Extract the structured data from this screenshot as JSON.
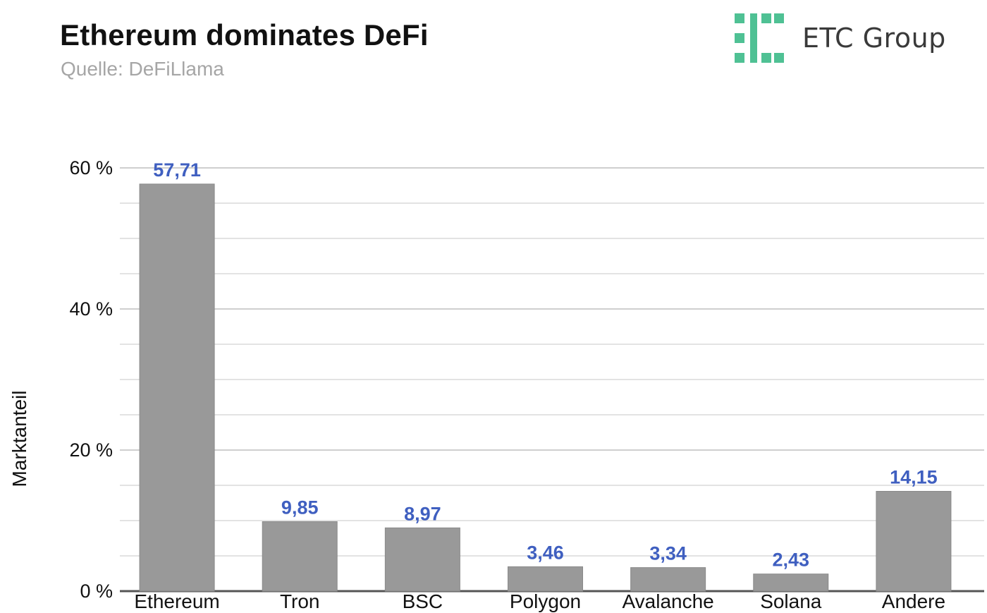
{
  "header": {
    "title": "Ethereum dominates DeFi",
    "subtitle": "Quelle: DeFiLlama"
  },
  "logo": {
    "text": "ETC Group",
    "icon": "etc-group-logo-icon",
    "color": "#4fc194"
  },
  "chart_data": {
    "type": "bar",
    "title": "Ethereum dominates DeFi",
    "subtitle": "Quelle: DeFiLlama",
    "xlabel": "",
    "ylabel": "Marktanteil",
    "categories": [
      "Ethereum",
      "Tron",
      "BSC",
      "Polygon",
      "Avalanche",
      "Solana",
      "Andere"
    ],
    "values": [
      57.71,
      9.85,
      8.97,
      3.46,
      3.34,
      2.43,
      14.15
    ],
    "value_labels": [
      "57,71",
      "9,85",
      "8,97",
      "3,46",
      "3,34",
      "2,43",
      "14,15"
    ],
    "ylim": [
      0,
      60
    ],
    "y_ticks": [
      0,
      20,
      40,
      60
    ],
    "y_tick_labels": [
      "0 %",
      "20 %",
      "40 %",
      "60 %"
    ],
    "grid": true,
    "bar_color": "#999999",
    "label_color": "#3f5fc0"
  }
}
